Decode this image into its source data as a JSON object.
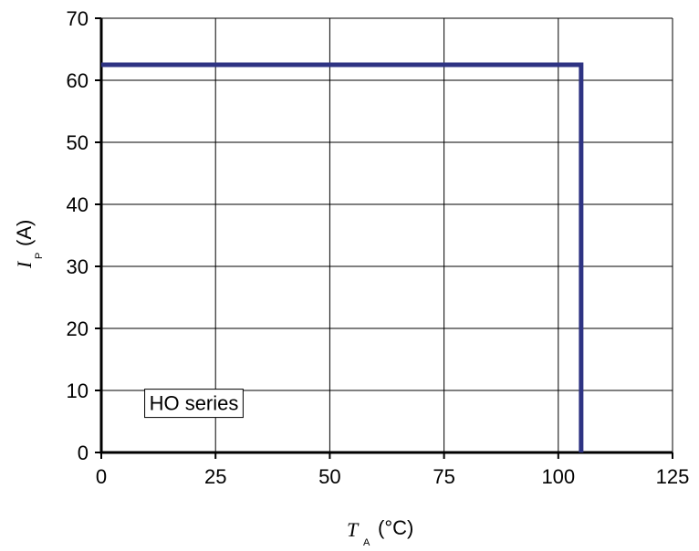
{
  "chart_data": {
    "type": "line",
    "xlabel": {
      "symbol": "T",
      "subscript": "A",
      "unit": "(°C)"
    },
    "ylabel": {
      "symbol": "I",
      "subscript": "P",
      "unit": "(A)"
    },
    "xlim": [
      0,
      125
    ],
    "ylim": [
      0,
      70
    ],
    "xticks": [
      0,
      25,
      50,
      75,
      100,
      125
    ],
    "yticks": [
      0,
      10,
      20,
      30,
      40,
      50,
      60,
      70
    ],
    "grid": true,
    "series": [
      {
        "color": "#2e3383",
        "x": [
          0,
          105,
          105
        ],
        "y": [
          62.5,
          62.5,
          0
        ]
      }
    ],
    "annotations": [
      {
        "text": "HO series",
        "x": 10.5,
        "y": 8
      }
    ]
  }
}
